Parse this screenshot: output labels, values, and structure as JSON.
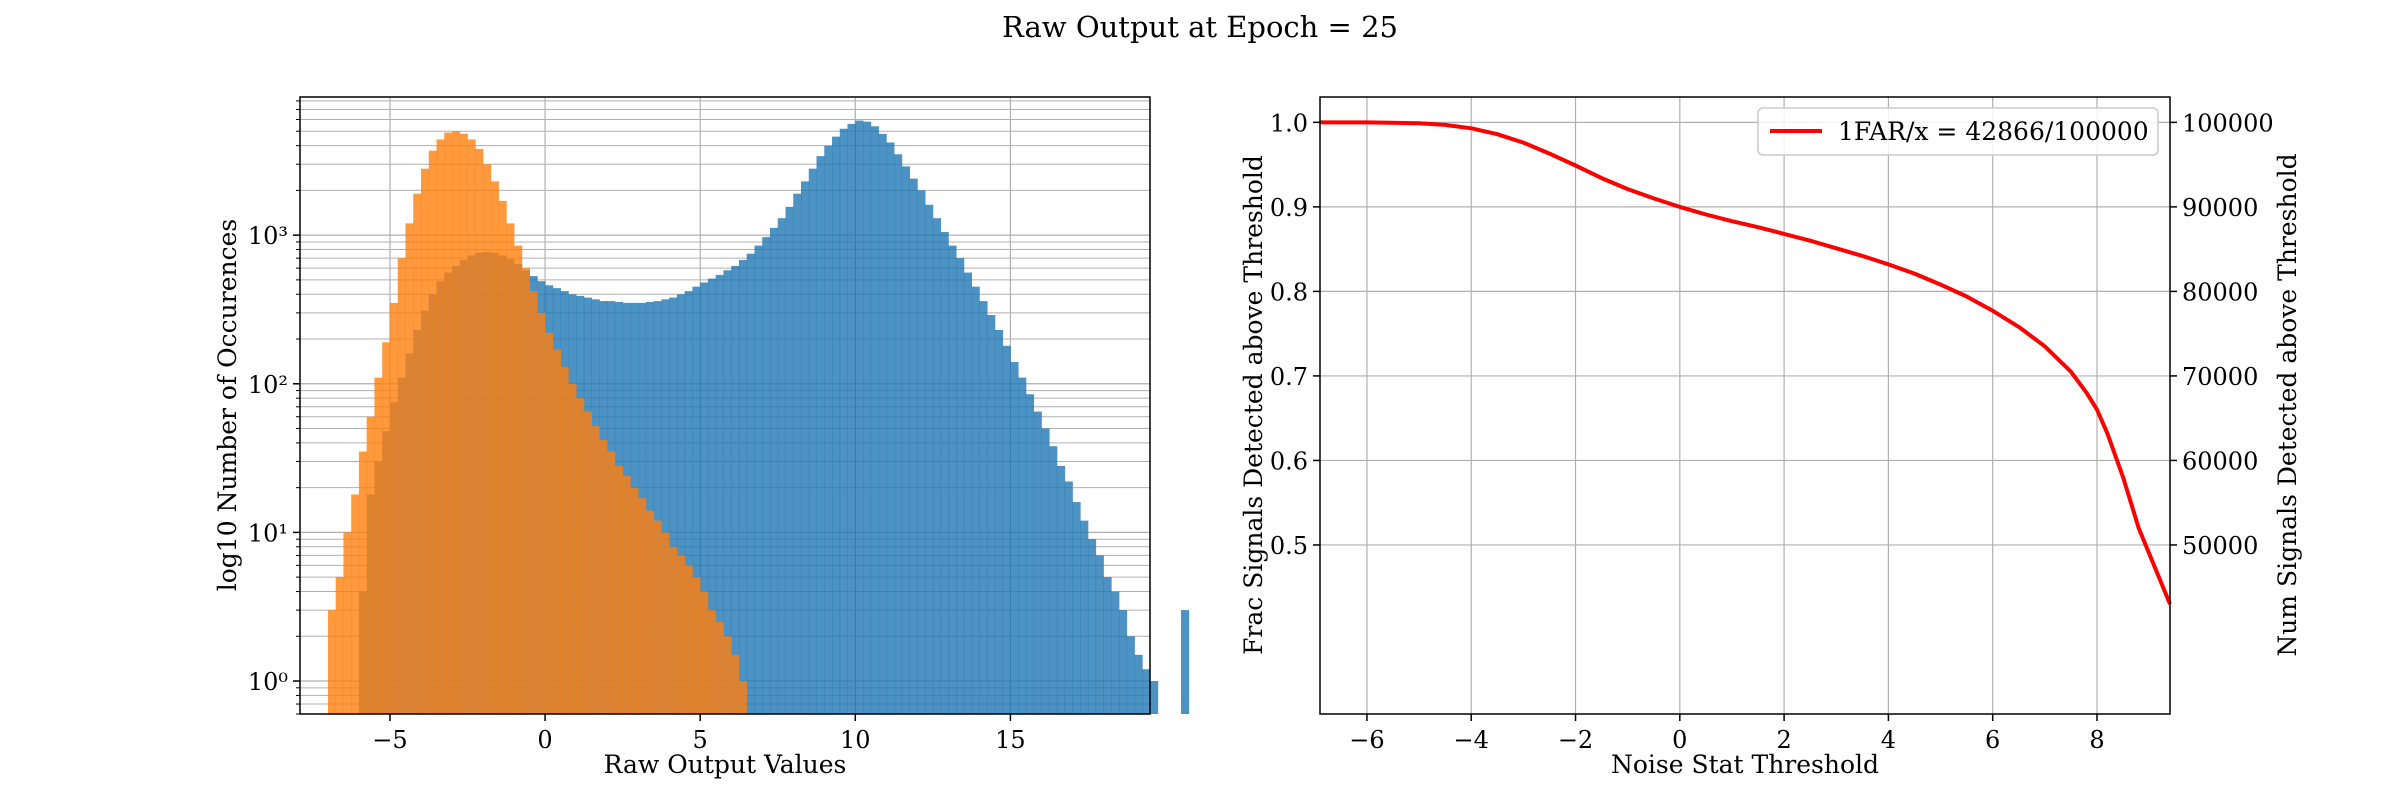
{
  "figure": {
    "suptitle": "Raw Output at Epoch = 25"
  },
  "chart_data": [
    {
      "type": "histogram",
      "title": "",
      "xlabel": "Raw Output Values",
      "ylabel": "log10 Number of Occurences",
      "xlim": [
        -7.9,
        19.5
      ],
      "ylim": [
        0.6,
        8500
      ],
      "y_scale": "log",
      "grid": true,
      "x_ticks": [
        -5,
        0,
        5,
        10,
        15
      ],
      "x_tick_labels": [
        "−5",
        "0",
        "5",
        "10",
        "15"
      ],
      "y_ticks": [
        1,
        10,
        100,
        1000
      ],
      "y_tick_labels": [
        "10⁰",
        "10¹",
        "10²",
        "10³"
      ],
      "series": [
        {
          "color": "#1f77b4",
          "bin_start": -6.0,
          "bin_width": 0.25,
          "values": [
            4,
            18,
            30,
            48,
            75,
            110,
            160,
            230,
            310,
            400,
            490,
            560,
            620,
            680,
            730,
            760,
            770,
            760,
            730,
            690,
            640,
            580,
            530,
            490,
            460,
            440,
            420,
            400,
            390,
            380,
            370,
            360,
            360,
            355,
            350,
            350,
            350,
            355,
            360,
            370,
            380,
            400,
            420,
            450,
            480,
            510,
            540,
            580,
            620,
            680,
            750,
            850,
            970,
            1120,
            1300,
            1550,
            1900,
            2300,
            2800,
            3400,
            4000,
            4600,
            5200,
            5600,
            5900,
            5800,
            5400,
            4800,
            4200,
            3500,
            2900,
            2400,
            2000,
            1600,
            1300,
            1050,
            850,
            700,
            560,
            450,
            360,
            290,
            230,
            180,
            140,
            110,
            85,
            65,
            50,
            38,
            28,
            22,
            16,
            12,
            9,
            7,
            5,
            4,
            3,
            2,
            1.5,
            1.2,
            1,
            0,
            0,
            0,
            3,
            0,
            0
          ]
        },
        {
          "color": "#ff7f0e",
          "bin_start": -7.0,
          "bin_width": 0.25,
          "values": [
            3,
            5,
            10,
            18,
            35,
            60,
            110,
            190,
            350,
            700,
            1200,
            1900,
            2800,
            3700,
            4400,
            4900,
            5000,
            4800,
            4400,
            3800,
            3000,
            2300,
            1700,
            1200,
            850,
            600,
            420,
            300,
            220,
            170,
            130,
            100,
            80,
            65,
            52,
            42,
            35,
            28,
            24,
            20,
            17,
            14,
            12,
            10,
            8,
            7,
            6,
            5,
            4,
            3,
            2.5,
            2,
            1.5,
            1,
            0,
            0,
            0,
            0,
            0,
            0,
            0,
            0,
            0,
            0,
            0,
            0,
            0
          ]
        }
      ]
    },
    {
      "type": "line",
      "title": "",
      "xlabel": "Noise Stat Threshold",
      "ylabel": "Frac Signals Detected above Threshold",
      "ylabel_right": "Num Signals Detected above Threshold",
      "xlim": [
        -6.9,
        9.4
      ],
      "ylim": [
        0.3,
        1.03
      ],
      "ylim_right": [
        30000,
        103000
      ],
      "grid": true,
      "legend": "upper-right",
      "x_ticks": [
        -6,
        -4,
        -2,
        0,
        2,
        4,
        6,
        8
      ],
      "x_tick_labels": [
        "−6",
        "−4",
        "−2",
        "0",
        "2",
        "4",
        "6",
        "8"
      ],
      "y_ticks": [
        0.5,
        0.6,
        0.7,
        0.8,
        0.9,
        1.0
      ],
      "y_tick_labels": [
        "0.5",
        "0.6",
        "0.7",
        "0.8",
        "0.9",
        "1.0"
      ],
      "y_ticks_right": [
        50000,
        60000,
        70000,
        80000,
        90000,
        100000
      ],
      "y_tick_labels_right": [
        "50000",
        "60000",
        "70000",
        "80000",
        "90000",
        "100000"
      ],
      "series": [
        {
          "name": "1FAR/x = 42866/100000",
          "color": "#ff0000",
          "x": [
            -6.9,
            -6,
            -5,
            -4.5,
            -4,
            -3.5,
            -3,
            -2.5,
            -2,
            -1.5,
            -1,
            -0.5,
            0,
            0.5,
            1,
            1.5,
            2,
            2.5,
            3,
            3.5,
            4,
            4.5,
            5,
            5.5,
            6,
            6.5,
            7,
            7.5,
            7.8,
            8,
            8.2,
            8.5,
            8.8,
            9,
            9.2,
            9.4
          ],
          "y": [
            1.0,
            1.0,
            0.999,
            0.997,
            0.993,
            0.986,
            0.976,
            0.963,
            0.949,
            0.934,
            0.921,
            0.91,
            0.9,
            0.891,
            0.883,
            0.876,
            0.868,
            0.86,
            0.851,
            0.842,
            0.832,
            0.821,
            0.808,
            0.794,
            0.777,
            0.758,
            0.735,
            0.705,
            0.68,
            0.66,
            0.632,
            0.58,
            0.52,
            0.49,
            0.46,
            0.43
          ]
        }
      ]
    }
  ]
}
